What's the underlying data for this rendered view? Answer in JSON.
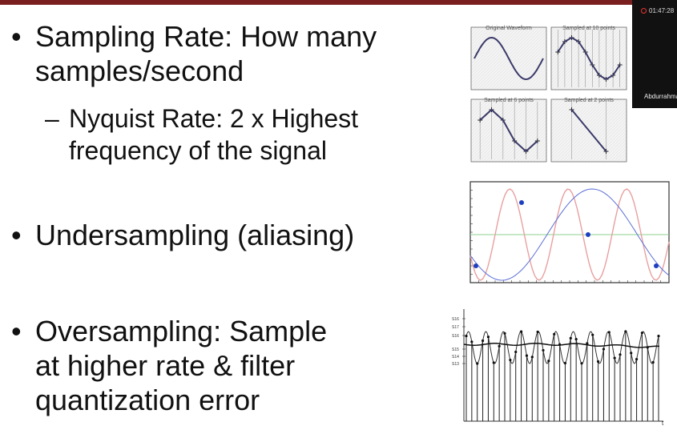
{
  "slide": {
    "bullet1": {
      "line1": "Sampling Rate: How many",
      "line2": "samples/second"
    },
    "sub1": {
      "line1": "Nyquist Rate: 2 x Highest",
      "line2": "frequency of the signal"
    },
    "bullet2": "Undersampling (aliasing)",
    "bullet3": {
      "line1": "Oversampling: Sample",
      "line2": "at higher rate & filter",
      "line3": "quantization error"
    },
    "bullet_marker": "•",
    "dash_marker": "–"
  },
  "figure_sampling": {
    "panels": [
      "Original Waveform",
      "Sampled at 10 points",
      "Sampled at 6 points",
      "Sampled at 2 points"
    ]
  },
  "figure_oversampling": {
    "y_ticks": [
      "S16",
      "S17",
      "S16",
      "S15",
      "S14",
      "S13"
    ],
    "x_axis_label": "t"
  },
  "meeting": {
    "recording_time": "01:47:28",
    "participant_name": "Abdurrahma"
  },
  "colors": {
    "top_bar": "#7a1f1f",
    "alias_red": "#e8a0a0",
    "alias_blue": "#5b6fd6",
    "alias_green": "#8fd18f"
  }
}
